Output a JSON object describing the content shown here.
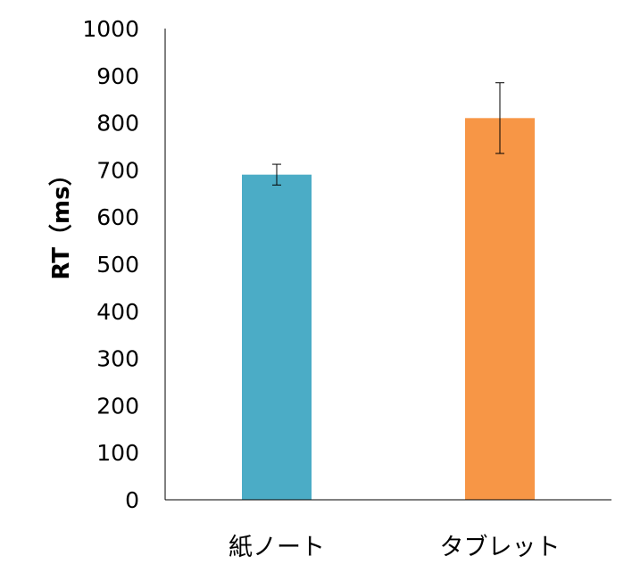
{
  "chart_data": {
    "type": "bar",
    "categories": [
      "紙ノート",
      "タブレット"
    ],
    "values": [
      690,
      810
    ],
    "errors": [
      22,
      75
    ],
    "colors": [
      "#4bacc6",
      "#f79646"
    ],
    "ylabel": "RT（ms）",
    "xlabel": "",
    "ylim": [
      0,
      1000
    ],
    "yticks": [
      "0",
      "100",
      "200",
      "300",
      "400",
      "500",
      "600",
      "700",
      "800",
      "900",
      "1000"
    ],
    "grid": false,
    "legend": "none"
  }
}
